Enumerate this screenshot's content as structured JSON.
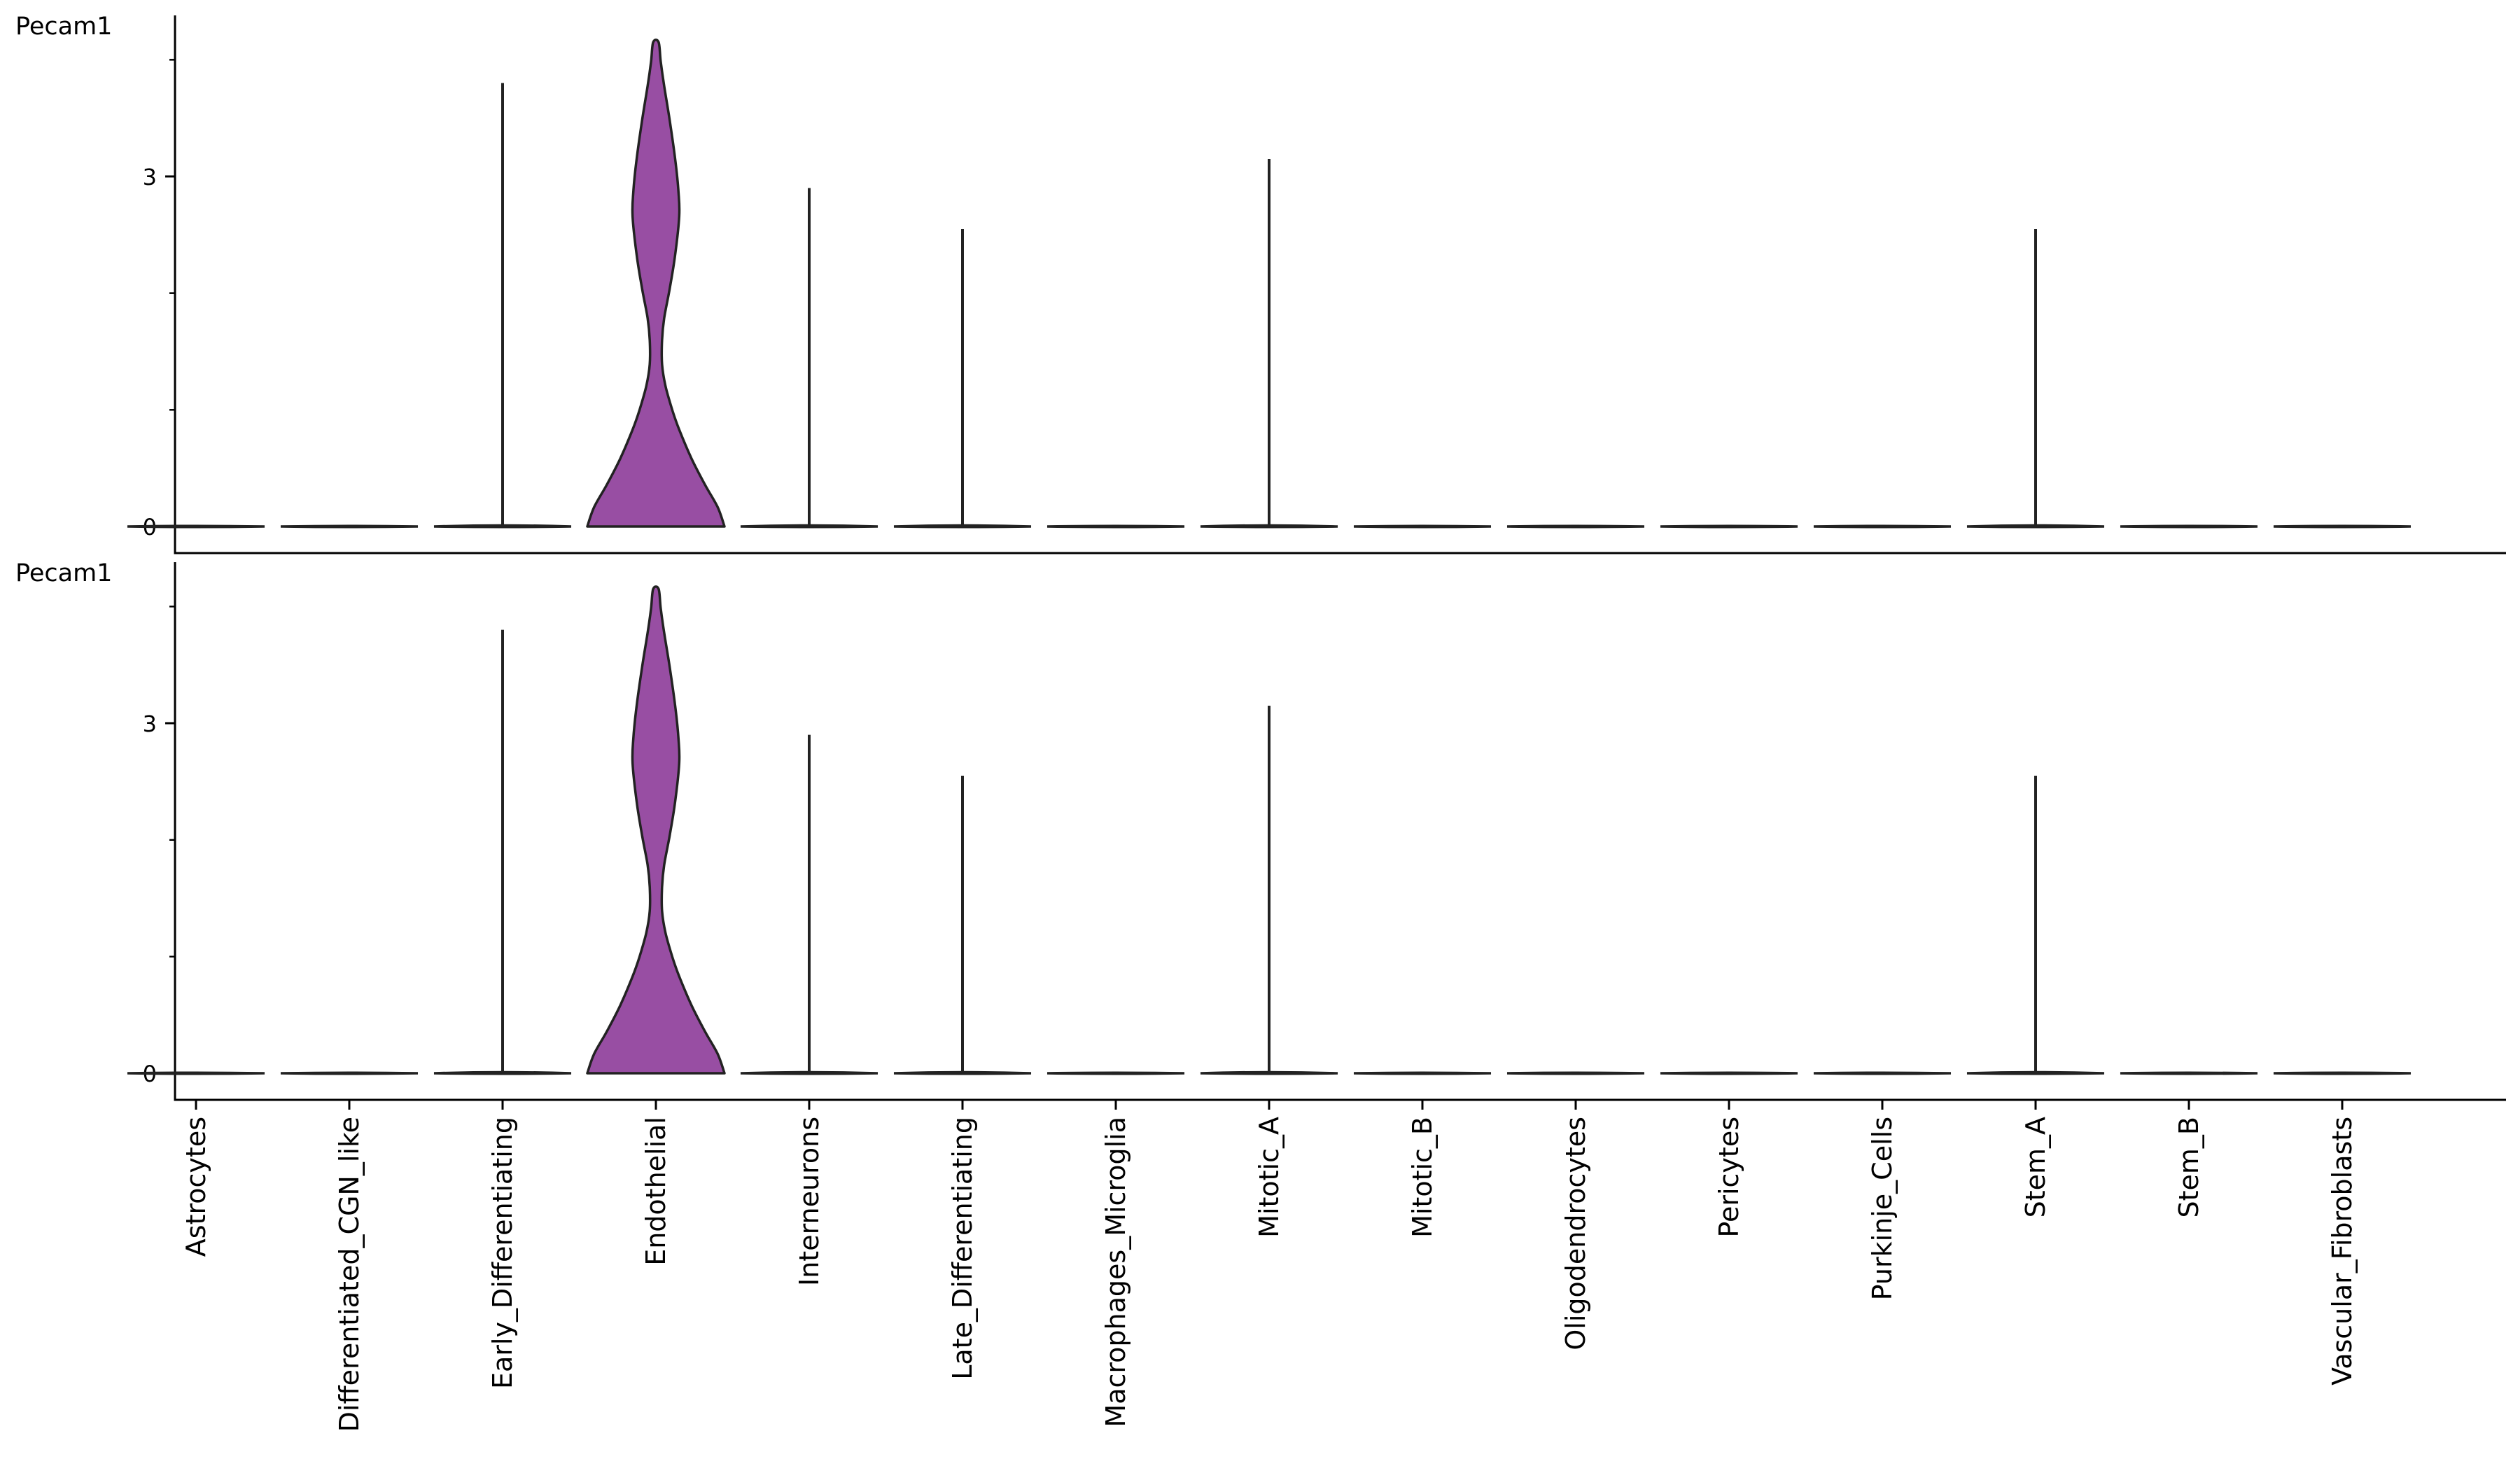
{
  "chart_data": [
    {
      "type": "violin",
      "title": "",
      "ylabel": "Pecam1",
      "ylim": [
        -0.2,
        4.4
      ],
      "yticks": [
        0,
        3
      ],
      "yticks_minor": [
        1,
        2,
        4
      ],
      "grid": false,
      "legend": "none",
      "categories": [
        "Astrocytes",
        "Differentiated_CGN_like",
        "Early_Differentiating",
        "Endothelial",
        "Interneurons",
        "Late_Differentiating",
        "Macrophages_Microglia",
        "Mitotic_A",
        "Mitotic_B",
        "Oligodendrocytes",
        "Pericytes",
        "Purkinje_Cells",
        "Stem_A",
        "Stem_B",
        "Vascular_Fibroblasts"
      ],
      "max_values": [
        0,
        0,
        3.8,
        4.15,
        2.9,
        2.55,
        0,
        3.15,
        0,
        0,
        0,
        0,
        2.55,
        0,
        0
      ]
    },
    {
      "type": "violin",
      "title": "",
      "ylabel": "Pecam1",
      "ylim": [
        -0.2,
        4.4
      ],
      "yticks": [
        0,
        3
      ],
      "yticks_minor": [
        1,
        2,
        4
      ],
      "grid": false,
      "legend": "none",
      "categories": [
        "Astrocytes",
        "Differentiated_CGN_like",
        "Early_Differentiating",
        "Endothelial",
        "Interneurons",
        "Late_Differentiating",
        "Macrophages_Microglia",
        "Mitotic_A",
        "Mitotic_B",
        "Oligodendrocytes",
        "Pericytes",
        "Purkinje_Cells",
        "Stem_A",
        "Stem_B",
        "Vascular_Fibroblasts"
      ],
      "max_values": [
        0,
        0,
        3.8,
        4.15,
        2.9,
        2.55,
        0,
        3.15,
        0,
        0,
        0,
        0,
        2.55,
        0,
        0
      ]
    }
  ],
  "colors": {
    "violin_fill": "#984ea3",
    "outline": "#222222",
    "axis": "#000000"
  }
}
